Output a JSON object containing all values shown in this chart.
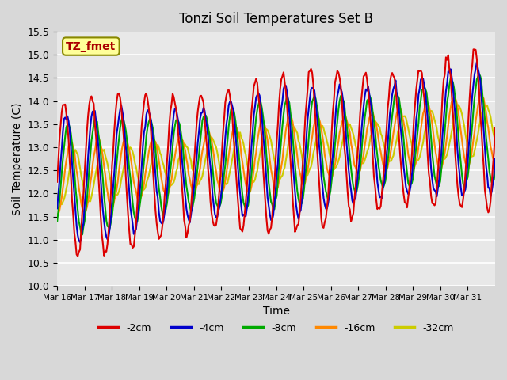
{
  "title": "Tonzi Soil Temperatures Set B",
  "xlabel": "Time",
  "ylabel": "Soil Temperature (C)",
  "ylim": [
    10.0,
    15.5
  ],
  "yticks": [
    10.0,
    10.5,
    11.0,
    11.5,
    12.0,
    12.5,
    13.0,
    13.5,
    14.0,
    14.5,
    15.0,
    15.5
  ],
  "x_labels": [
    "Mar 16",
    "Mar 17",
    "Mar 18",
    "Mar 19",
    "Mar 20",
    "Mar 21",
    "Mar 22",
    "Mar 23",
    "Mar 24",
    "Mar 25",
    "Mar 26",
    "Mar 27",
    "Mar 28",
    "Mar 29",
    "Mar 30",
    "Mar 31"
  ],
  "legend_labels": [
    "-2cm",
    "-4cm",
    "-8cm",
    "-16cm",
    "-32cm"
  ],
  "legend_colors": [
    "#dd0000",
    "#0000cc",
    "#00aa00",
    "#ff8800",
    "#cccc00"
  ],
  "background_color": "#e8e8e8",
  "fig_bg_color": "#d8d8d8",
  "grid_color": "#ffffff",
  "annotation_text": "TZ_fmet",
  "annotation_color": "#aa0000",
  "annotation_bg": "#ffff99",
  "annotation_border": "#888800"
}
